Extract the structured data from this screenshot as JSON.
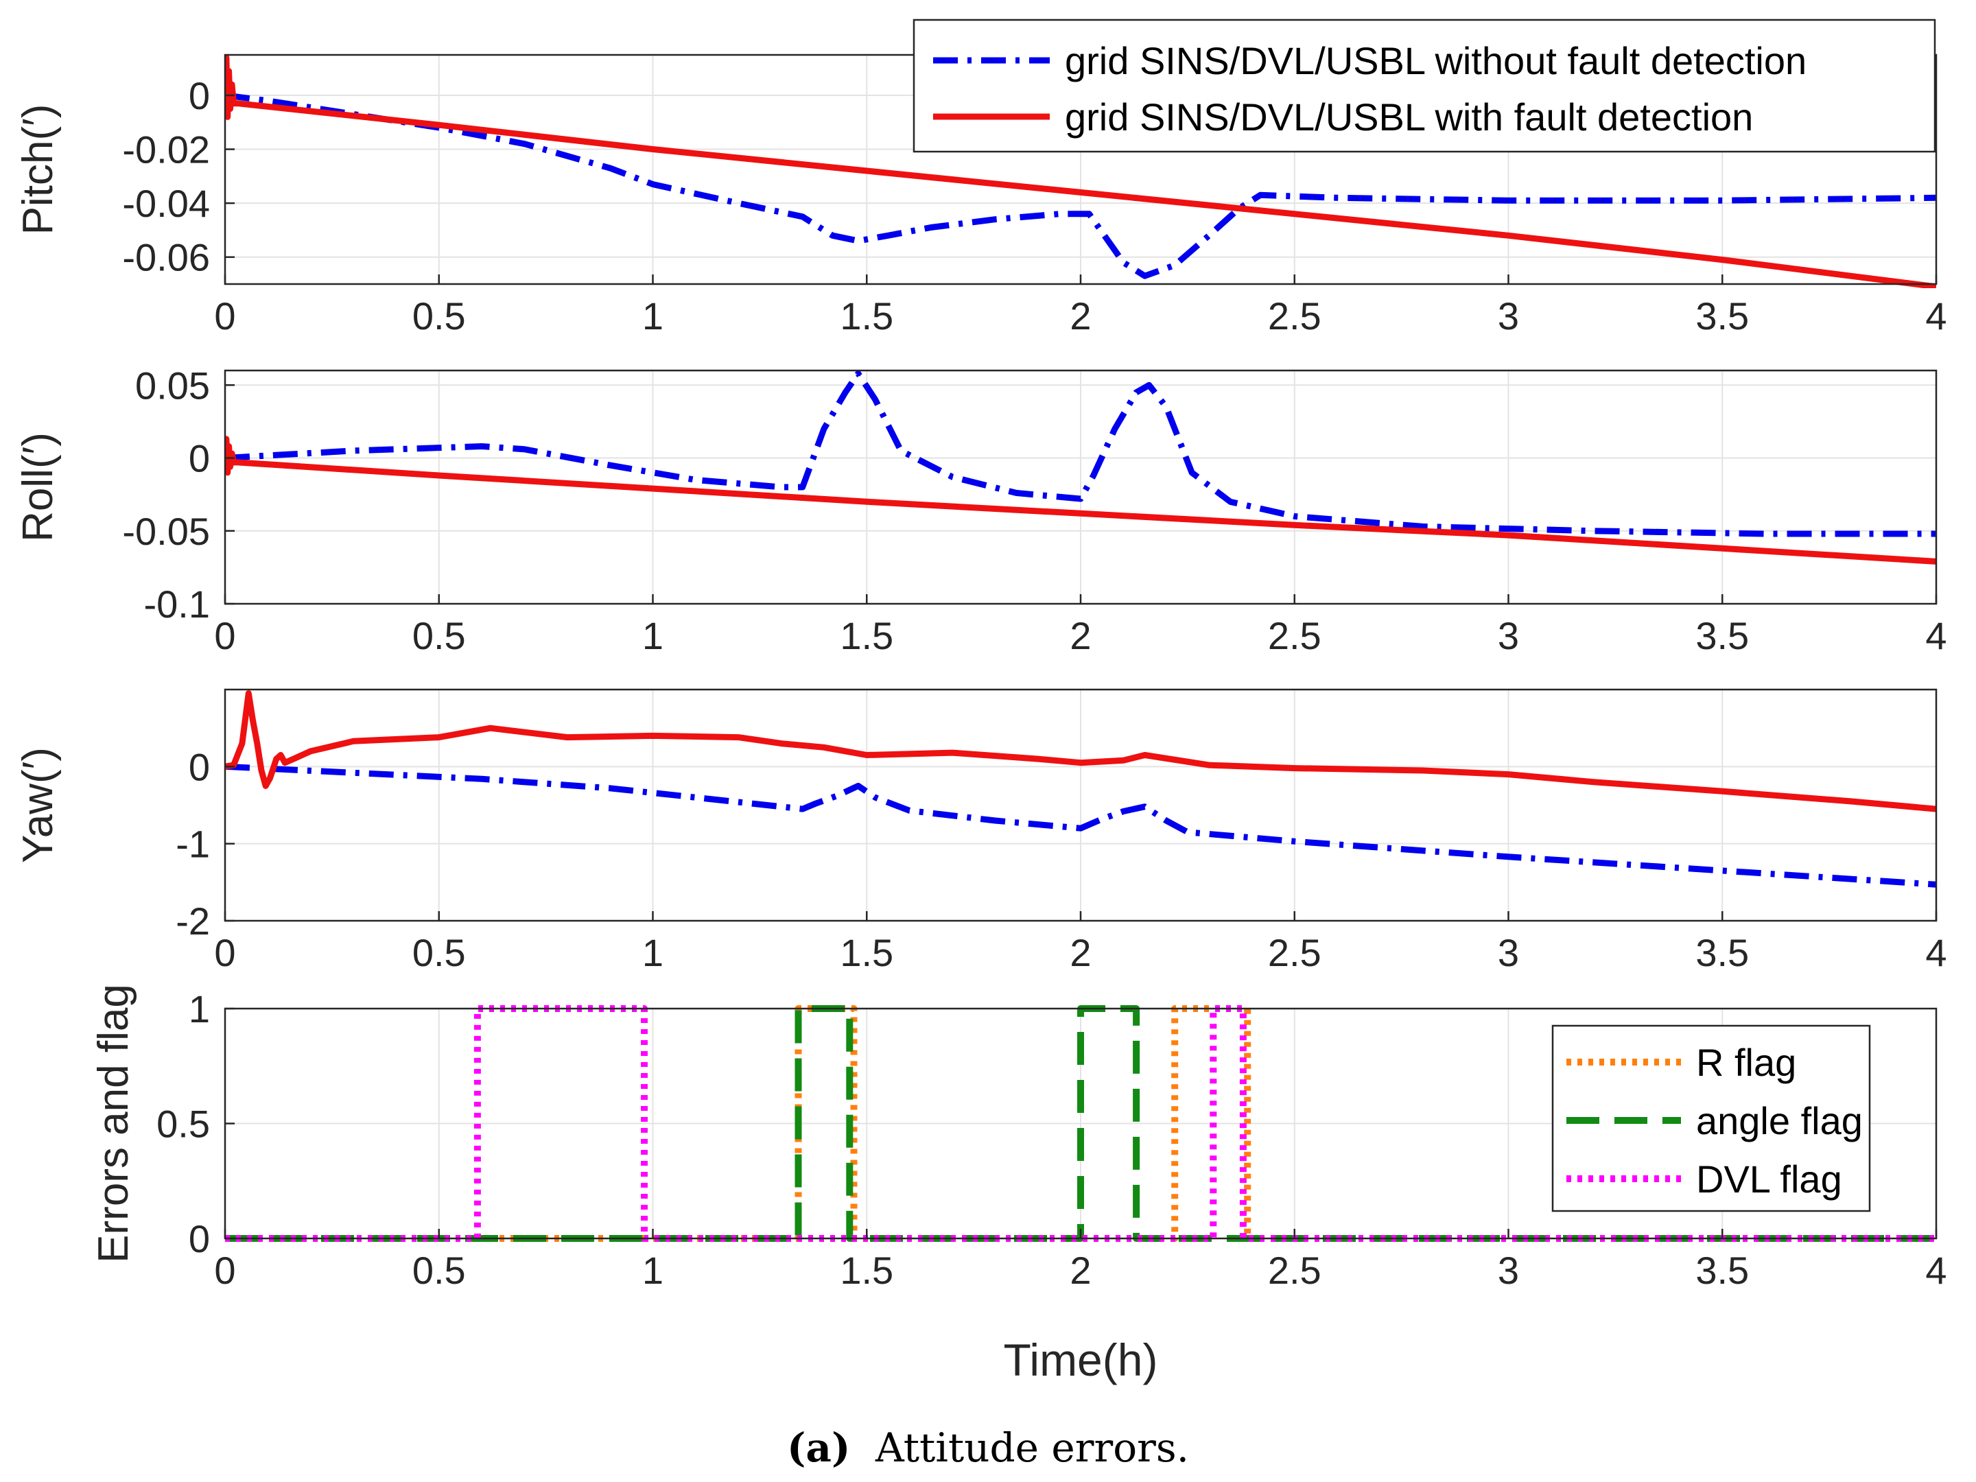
{
  "figure": {
    "caption_label": "(a)",
    "caption_text": "Attitude errors."
  },
  "chart_data": [
    {
      "type": "line",
      "ylabel": "Pitch(′)",
      "xlabel": "",
      "xlim": [
        0,
        4
      ],
      "ylim": [
        -0.07,
        0.015
      ],
      "xticks": [
        0,
        0.5,
        1,
        1.5,
        2,
        2.5,
        3,
        3.5,
        4
      ],
      "xtick_labels": [
        "0",
        "0.5",
        "1",
        "1.5",
        "2",
        "2.5",
        "3",
        "3.5",
        "4"
      ],
      "yticks": [
        0,
        -0.02,
        -0.04,
        -0.06
      ],
      "ytick_labels": [
        "0",
        "-0.02",
        "-0.04",
        "-0.06"
      ],
      "grid": true,
      "legend": "top-right",
      "series": [
        {
          "name": "grid SINS/DVL/USBL without fault detection",
          "style": "dashdot",
          "color": "#0000ee",
          "x": [
            0,
            0.1,
            0.3,
            0.5,
            0.7,
            0.9,
            1.0,
            1.2,
            1.35,
            1.38,
            1.42,
            1.48,
            1.55,
            1.65,
            1.8,
            1.95,
            2.02,
            2.06,
            2.1,
            2.15,
            2.22,
            2.3,
            2.37,
            2.42,
            2.6,
            3.0,
            3.5,
            4.0
          ],
          "y": [
            0,
            -0.002,
            -0.007,
            -0.012,
            -0.018,
            -0.027,
            -0.033,
            -0.04,
            -0.045,
            -0.048,
            -0.052,
            -0.054,
            -0.052,
            -0.049,
            -0.046,
            -0.044,
            -0.044,
            -0.053,
            -0.062,
            -0.067,
            -0.063,
            -0.052,
            -0.042,
            -0.037,
            -0.038,
            -0.039,
            -0.039,
            -0.038
          ]
        },
        {
          "name": "grid SINS/DVL/USBL with fault detection",
          "style": "solid",
          "color": "#ee1111",
          "x": [
            0,
            0.003,
            0.006,
            0.009,
            0.012,
            0.016,
            0.02,
            0.03,
            0.5,
            1.0,
            1.5,
            2.0,
            2.5,
            3.0,
            3.5,
            4.0
          ],
          "y": [
            -0.003,
            0.014,
            -0.008,
            0.009,
            -0.005,
            0.004,
            -0.003,
            -0.003,
            -0.011,
            -0.02,
            -0.028,
            -0.036,
            -0.044,
            -0.052,
            -0.061,
            -0.071
          ]
        }
      ]
    },
    {
      "type": "line",
      "ylabel": "Roll(′)",
      "xlabel": "",
      "xlim": [
        0,
        4
      ],
      "ylim": [
        -0.1,
        0.06
      ],
      "xticks": [
        0,
        0.5,
        1,
        1.5,
        2,
        2.5,
        3,
        3.5,
        4
      ],
      "xtick_labels": [
        "0",
        "0.5",
        "1",
        "1.5",
        "2",
        "2.5",
        "3",
        "3.5",
        "4"
      ],
      "yticks": [
        0.05,
        0,
        -0.05,
        -0.1
      ],
      "ytick_labels": [
        "0.05",
        "0",
        "-0.05",
        "-0.1"
      ],
      "grid": true,
      "series": [
        {
          "name": "grid SINS/DVL/USBL without fault detection",
          "style": "dashdot",
          "color": "#0000ee",
          "x": [
            0,
            0.3,
            0.6,
            0.7,
            0.9,
            1.1,
            1.3,
            1.35,
            1.4,
            1.45,
            1.48,
            1.52,
            1.58,
            1.7,
            1.85,
            2.0,
            2.03,
            2.08,
            2.13,
            2.16,
            2.2,
            2.26,
            2.35,
            2.5,
            2.8,
            3.2,
            3.6,
            4.0
          ],
          "y": [
            0,
            0.005,
            0.008,
            0.006,
            -0.005,
            -0.015,
            -0.02,
            -0.02,
            0.02,
            0.045,
            0.058,
            0.04,
            0.005,
            -0.013,
            -0.024,
            -0.028,
            -0.012,
            0.02,
            0.045,
            0.05,
            0.035,
            -0.01,
            -0.03,
            -0.04,
            -0.047,
            -0.05,
            -0.052,
            -0.052
          ]
        },
        {
          "name": "grid SINS/DVL/USBL with fault detection",
          "style": "solid",
          "color": "#ee1111",
          "x": [
            0,
            0.003,
            0.006,
            0.009,
            0.012,
            0.016,
            0.02,
            0.03,
            0.5,
            1.0,
            1.5,
            2.0,
            2.5,
            3.0,
            3.5,
            4.0
          ],
          "y": [
            -0.002,
            0.013,
            -0.01,
            0.008,
            -0.006,
            0.003,
            -0.003,
            -0.003,
            -0.012,
            -0.021,
            -0.03,
            -0.038,
            -0.046,
            -0.053,
            -0.062,
            -0.071
          ]
        }
      ]
    },
    {
      "type": "line",
      "ylabel": "Yaw(′)",
      "xlabel": "",
      "xlim": [
        0,
        4
      ],
      "ylim": [
        -2,
        1
      ],
      "xticks": [
        0,
        0.5,
        1,
        1.5,
        2,
        2.5,
        3,
        3.5,
        4
      ],
      "xtick_labels": [
        "0",
        "0.5",
        "1",
        "1.5",
        "2",
        "2.5",
        "3",
        "3.5",
        "4"
      ],
      "yticks": [
        0,
        -1,
        -2
      ],
      "ytick_labels": [
        "0",
        "-1",
        "-2"
      ],
      "grid": true,
      "series": [
        {
          "name": "grid SINS/DVL/USBL without fault detection",
          "style": "dashdot",
          "color": "#0000ee",
          "x": [
            0,
            0.3,
            0.6,
            0.9,
            1.2,
            1.35,
            1.38,
            1.43,
            1.48,
            1.52,
            1.6,
            1.8,
            2.0,
            2.05,
            2.1,
            2.15,
            2.2,
            2.25,
            2.5,
            3.0,
            3.5,
            4.0
          ],
          "y": [
            0,
            -0.08,
            -0.16,
            -0.28,
            -0.46,
            -0.55,
            -0.48,
            -0.38,
            -0.25,
            -0.4,
            -0.57,
            -0.7,
            -0.8,
            -0.68,
            -0.58,
            -0.52,
            -0.7,
            -0.85,
            -0.97,
            -1.17,
            -1.35,
            -1.53
          ]
        },
        {
          "name": "grid SINS/DVL/USBL with fault detection",
          "style": "solid",
          "color": "#ee1111",
          "x": [
            0,
            0.02,
            0.04,
            0.055,
            0.065,
            0.075,
            0.085,
            0.095,
            0.105,
            0.12,
            0.13,
            0.14,
            0.16,
            0.2,
            0.3,
            0.5,
            0.62,
            0.8,
            1.0,
            1.2,
            1.3,
            1.4,
            1.5,
            1.7,
            1.9,
            2.0,
            2.1,
            2.15,
            2.3,
            2.5,
            2.8,
            3.0,
            3.2,
            3.5,
            3.8,
            4.0
          ],
          "y": [
            0,
            0.02,
            0.3,
            0.95,
            0.6,
            0.3,
            -0.05,
            -0.25,
            -0.15,
            0.1,
            0.15,
            0.05,
            0.1,
            0.2,
            0.33,
            0.38,
            0.5,
            0.38,
            0.4,
            0.38,
            0.3,
            0.25,
            0.15,
            0.18,
            0.1,
            0.05,
            0.08,
            0.15,
            0.02,
            -0.02,
            -0.05,
            -0.1,
            -0.2,
            -0.32,
            -0.45,
            -0.55
          ]
        }
      ]
    },
    {
      "type": "line",
      "ylabel": "Errors and flag",
      "xlabel": "Time(h)",
      "xlim": [
        0,
        4
      ],
      "ylim": [
        0,
        1
      ],
      "xticks": [
        0,
        0.5,
        1,
        1.5,
        2,
        2.5,
        3,
        3.5,
        4
      ],
      "xtick_labels": [
        "0",
        "0.5",
        "1",
        "1.5",
        "2",
        "2.5",
        "3",
        "3.5",
        "4"
      ],
      "yticks": [
        1,
        0.5,
        0
      ],
      "ytick_labels": [
        "1",
        "0.5",
        "0"
      ],
      "grid": true,
      "legend": "right",
      "series": [
        {
          "name": "R flag",
          "style": "dotted",
          "color": "#ff7f0e",
          "x": [
            0,
            1.34,
            1.34,
            1.47,
            1.47,
            2.22,
            2.22,
            2.39,
            2.39,
            4.0
          ],
          "y": [
            0,
            0,
            1,
            1,
            0,
            0,
            1,
            1,
            0,
            0
          ]
        },
        {
          "name": "angle flag",
          "style": "dashed",
          "color": "#138a13",
          "x": [
            0,
            1.34,
            1.34,
            1.46,
            1.46,
            2.0,
            2.0,
            2.13,
            2.13,
            4.0
          ],
          "y": [
            0,
            0,
            1,
            1,
            0,
            0,
            1,
            1,
            0,
            0
          ]
        },
        {
          "name": "DVL flag",
          "style": "dotted",
          "color": "#ff00ff",
          "x": [
            0,
            0.59,
            0.59,
            0.98,
            0.98,
            2.31,
            2.31,
            2.38,
            2.38,
            4.0
          ],
          "y": [
            0,
            0,
            1,
            1,
            0,
            0,
            1,
            1,
            0,
            0
          ]
        }
      ]
    }
  ]
}
